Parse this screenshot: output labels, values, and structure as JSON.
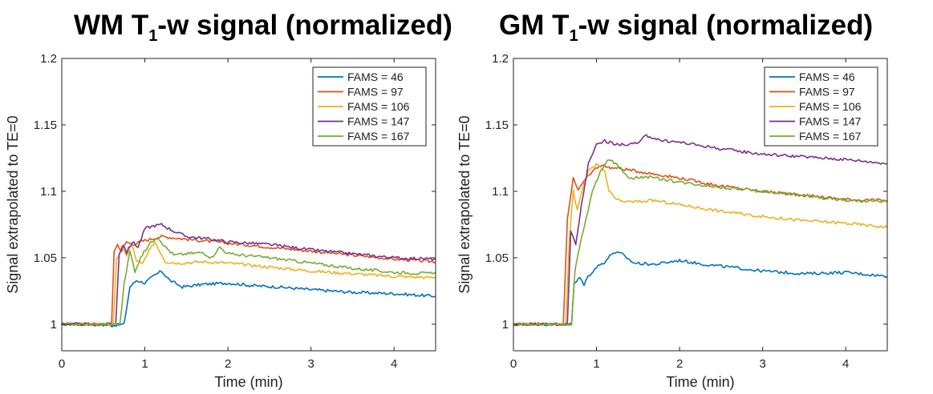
{
  "chart_data": [
    {
      "type": "line",
      "title": {
        "main": "WM T",
        "sub": "1",
        "rest": "-w signal (normalized)"
      },
      "xlabel": "Time (min)",
      "ylabel": "Signal extrapolated to TE=0",
      "xlim": [
        0,
        4.5
      ],
      "ylim": [
        0.98,
        1.2
      ],
      "xticks": [
        0,
        1,
        2,
        3,
        4
      ],
      "xtick_labels": [
        "0",
        "1",
        "2",
        "3",
        "4"
      ],
      "yticks": [
        1,
        1.05,
        1.1,
        1.15,
        1.2
      ],
      "ytick_labels": [
        "1",
        "1.05",
        "1.1",
        "1.15",
        "1.2"
      ],
      "legend_position": "top-right",
      "series": [
        {
          "name": "FAMS = 46",
          "color": "#0072bd",
          "points": [
            [
              0,
              1.0
            ],
            [
              0.3,
              1.0
            ],
            [
              0.6,
              0.999
            ],
            [
              0.75,
              1.0
            ],
            [
              0.82,
              1.028
            ],
            [
              0.9,
              1.033
            ],
            [
              1.0,
              1.031
            ],
            [
              1.1,
              1.036
            ],
            [
              1.2,
              1.04
            ],
            [
              1.3,
              1.033
            ],
            [
              1.45,
              1.028
            ],
            [
              1.7,
              1.03
            ],
            [
              2.0,
              1.031
            ],
            [
              2.3,
              1.029
            ],
            [
              2.6,
              1.028
            ],
            [
              3.0,
              1.026
            ],
            [
              3.5,
              1.024
            ],
            [
              4.0,
              1.023
            ],
            [
              4.5,
              1.021
            ]
          ]
        },
        {
          "name": "FAMS = 97",
          "color": "#d95319",
          "points": [
            [
              0,
              1.0
            ],
            [
              0.3,
              1.0
            ],
            [
              0.6,
              1.0
            ],
            [
              0.63,
              1.055
            ],
            [
              0.67,
              1.06
            ],
            [
              0.72,
              1.055
            ],
            [
              0.78,
              1.062
            ],
            [
              0.85,
              1.06
            ],
            [
              1.0,
              1.063
            ],
            [
              1.2,
              1.066
            ],
            [
              1.5,
              1.064
            ],
            [
              2.0,
              1.061
            ],
            [
              2.5,
              1.058
            ],
            [
              3.0,
              1.055
            ],
            [
              3.5,
              1.052
            ],
            [
              4.0,
              1.049
            ],
            [
              4.5,
              1.047
            ]
          ]
        },
        {
          "name": "FAMS = 106",
          "color": "#edb120",
          "points": [
            [
              0,
              1.0
            ],
            [
              0.3,
              1.0
            ],
            [
              0.62,
              1.0
            ],
            [
              0.66,
              1.048
            ],
            [
              0.72,
              1.058
            ],
            [
              0.78,
              1.052
            ],
            [
              0.84,
              1.06
            ],
            [
              0.9,
              1.048
            ],
            [
              0.97,
              1.045
            ],
            [
              1.05,
              1.055
            ],
            [
              1.12,
              1.062
            ],
            [
              1.18,
              1.055
            ],
            [
              1.25,
              1.047
            ],
            [
              1.4,
              1.046
            ],
            [
              1.7,
              1.047
            ],
            [
              2.0,
              1.046
            ],
            [
              2.5,
              1.043
            ],
            [
              3.0,
              1.04
            ],
            [
              3.5,
              1.038
            ],
            [
              4.0,
              1.036
            ],
            [
              4.5,
              1.035
            ]
          ]
        },
        {
          "name": "FAMS = 147",
          "color": "#7e2f8e",
          "points": [
            [
              0,
              1.0
            ],
            [
              0.3,
              1.0
            ],
            [
              0.65,
              1.0
            ],
            [
              0.69,
              1.053
            ],
            [
              0.74,
              1.06
            ],
            [
              0.78,
              1.054
            ],
            [
              0.85,
              1.062
            ],
            [
              0.92,
              1.058
            ],
            [
              1.0,
              1.072
            ],
            [
              1.1,
              1.074
            ],
            [
              1.2,
              1.075
            ],
            [
              1.35,
              1.07
            ],
            [
              1.5,
              1.066
            ],
            [
              1.8,
              1.064
            ],
            [
              2.0,
              1.062
            ],
            [
              2.5,
              1.06
            ],
            [
              3.0,
              1.056
            ],
            [
              3.5,
              1.053
            ],
            [
              4.0,
              1.05
            ],
            [
              4.5,
              1.049
            ]
          ]
        },
        {
          "name": "FAMS = 167",
          "color": "#77ac30",
          "points": [
            [
              0,
              1.0
            ],
            [
              0.3,
              1.0
            ],
            [
              0.7,
              1.0
            ],
            [
              0.75,
              1.03
            ],
            [
              0.82,
              1.055
            ],
            [
              0.88,
              1.04
            ],
            [
              0.95,
              1.05
            ],
            [
              1.05,
              1.06
            ],
            [
              1.15,
              1.066
            ],
            [
              1.25,
              1.058
            ],
            [
              1.35,
              1.052
            ],
            [
              1.5,
              1.053
            ],
            [
              1.7,
              1.054
            ],
            [
              1.8,
              1.05
            ],
            [
              1.9,
              1.058
            ],
            [
              2.0,
              1.053
            ],
            [
              2.5,
              1.05
            ],
            [
              3.0,
              1.046
            ],
            [
              3.5,
              1.042
            ],
            [
              4.0,
              1.039
            ],
            [
              4.5,
              1.038
            ]
          ]
        }
      ]
    },
    {
      "type": "line",
      "title": {
        "main": "GM T",
        "sub": "1",
        "rest": "-w signal (normalized)"
      },
      "xlabel": "Time (min)",
      "ylabel": "Signal extrapolated to TE=0",
      "xlim": [
        0,
        4.5
      ],
      "ylim": [
        0.98,
        1.2
      ],
      "xticks": [
        0,
        1,
        2,
        3,
        4
      ],
      "xtick_labels": [
        "0",
        "1",
        "2",
        "3",
        "4"
      ],
      "yticks": [
        1,
        1.05,
        1.1,
        1.15,
        1.2
      ],
      "ytick_labels": [
        "1",
        "1.05",
        "1.1",
        "1.15",
        "1.2"
      ],
      "legend_position": "top-right",
      "series": [
        {
          "name": "FAMS = 46",
          "color": "#0072bd",
          "points": [
            [
              0,
              1.0
            ],
            [
              0.3,
              1.0
            ],
            [
              0.7,
              1.0
            ],
            [
              0.73,
              1.03
            ],
            [
              0.8,
              1.035
            ],
            [
              0.85,
              1.03
            ],
            [
              0.9,
              1.036
            ],
            [
              1.0,
              1.043
            ],
            [
              1.1,
              1.047
            ],
            [
              1.2,
              1.054
            ],
            [
              1.3,
              1.053
            ],
            [
              1.45,
              1.046
            ],
            [
              1.7,
              1.045
            ],
            [
              2.0,
              1.048
            ],
            [
              2.3,
              1.045
            ],
            [
              2.6,
              1.043
            ],
            [
              3.0,
              1.04
            ],
            [
              3.5,
              1.038
            ],
            [
              4.0,
              1.039
            ],
            [
              4.5,
              1.036
            ]
          ]
        },
        {
          "name": "FAMS = 97",
          "color": "#d95319",
          "points": [
            [
              0,
              1.0
            ],
            [
              0.3,
              1.0
            ],
            [
              0.6,
              1.0
            ],
            [
              0.65,
              1.08
            ],
            [
              0.72,
              1.11
            ],
            [
              0.78,
              1.1
            ],
            [
              0.85,
              1.108
            ],
            [
              0.95,
              1.115
            ],
            [
              1.05,
              1.12
            ],
            [
              1.15,
              1.118
            ],
            [
              1.3,
              1.117
            ],
            [
              1.5,
              1.115
            ],
            [
              2.0,
              1.11
            ],
            [
              2.5,
              1.104
            ],
            [
              3.0,
              1.1
            ],
            [
              3.5,
              1.097
            ],
            [
              4.0,
              1.094
            ],
            [
              4.5,
              1.093
            ]
          ]
        },
        {
          "name": "FAMS = 106",
          "color": "#edb120",
          "points": [
            [
              0,
              1.0
            ],
            [
              0.3,
              1.0
            ],
            [
              0.63,
              1.0
            ],
            [
              0.67,
              1.06
            ],
            [
              0.72,
              1.1
            ],
            [
              0.77,
              1.085
            ],
            [
              0.82,
              1.1
            ],
            [
              0.9,
              1.115
            ],
            [
              1.0,
              1.12
            ],
            [
              1.1,
              1.115
            ],
            [
              1.15,
              1.1
            ],
            [
              1.25,
              1.093
            ],
            [
              1.4,
              1.092
            ],
            [
              1.7,
              1.093
            ],
            [
              2.0,
              1.09
            ],
            [
              2.5,
              1.085
            ],
            [
              3.0,
              1.081
            ],
            [
              3.5,
              1.078
            ],
            [
              4.0,
              1.076
            ],
            [
              4.5,
              1.073
            ]
          ]
        },
        {
          "name": "FAMS = 147",
          "color": "#7e2f8e",
          "points": [
            [
              0,
              1.0
            ],
            [
              0.3,
              1.0
            ],
            [
              0.65,
              1.0
            ],
            [
              0.69,
              1.07
            ],
            [
              0.75,
              1.06
            ],
            [
              0.82,
              1.09
            ],
            [
              0.9,
              1.12
            ],
            [
              1.0,
              1.135
            ],
            [
              1.1,
              1.138
            ],
            [
              1.25,
              1.135
            ],
            [
              1.5,
              1.136
            ],
            [
              1.6,
              1.142
            ],
            [
              1.8,
              1.138
            ],
            [
              2.0,
              1.137
            ],
            [
              2.5,
              1.132
            ],
            [
              3.0,
              1.128
            ],
            [
              3.5,
              1.126
            ],
            [
              4.0,
              1.124
            ],
            [
              4.5,
              1.121
            ]
          ]
        },
        {
          "name": "FAMS = 167",
          "color": "#77ac30",
          "points": [
            [
              0,
              1.0
            ],
            [
              0.3,
              1.0
            ],
            [
              0.7,
              1.0
            ],
            [
              0.74,
              1.04
            ],
            [
              0.8,
              1.06
            ],
            [
              0.88,
              1.08
            ],
            [
              0.95,
              1.1
            ],
            [
              1.05,
              1.115
            ],
            [
              1.15,
              1.124
            ],
            [
              1.25,
              1.12
            ],
            [
              1.4,
              1.11
            ],
            [
              1.6,
              1.111
            ],
            [
              2.0,
              1.107
            ],
            [
              2.5,
              1.103
            ],
            [
              3.0,
              1.1
            ],
            [
              3.5,
              1.097
            ],
            [
              4.0,
              1.093
            ],
            [
              4.5,
              1.092
            ]
          ]
        }
      ]
    }
  ]
}
